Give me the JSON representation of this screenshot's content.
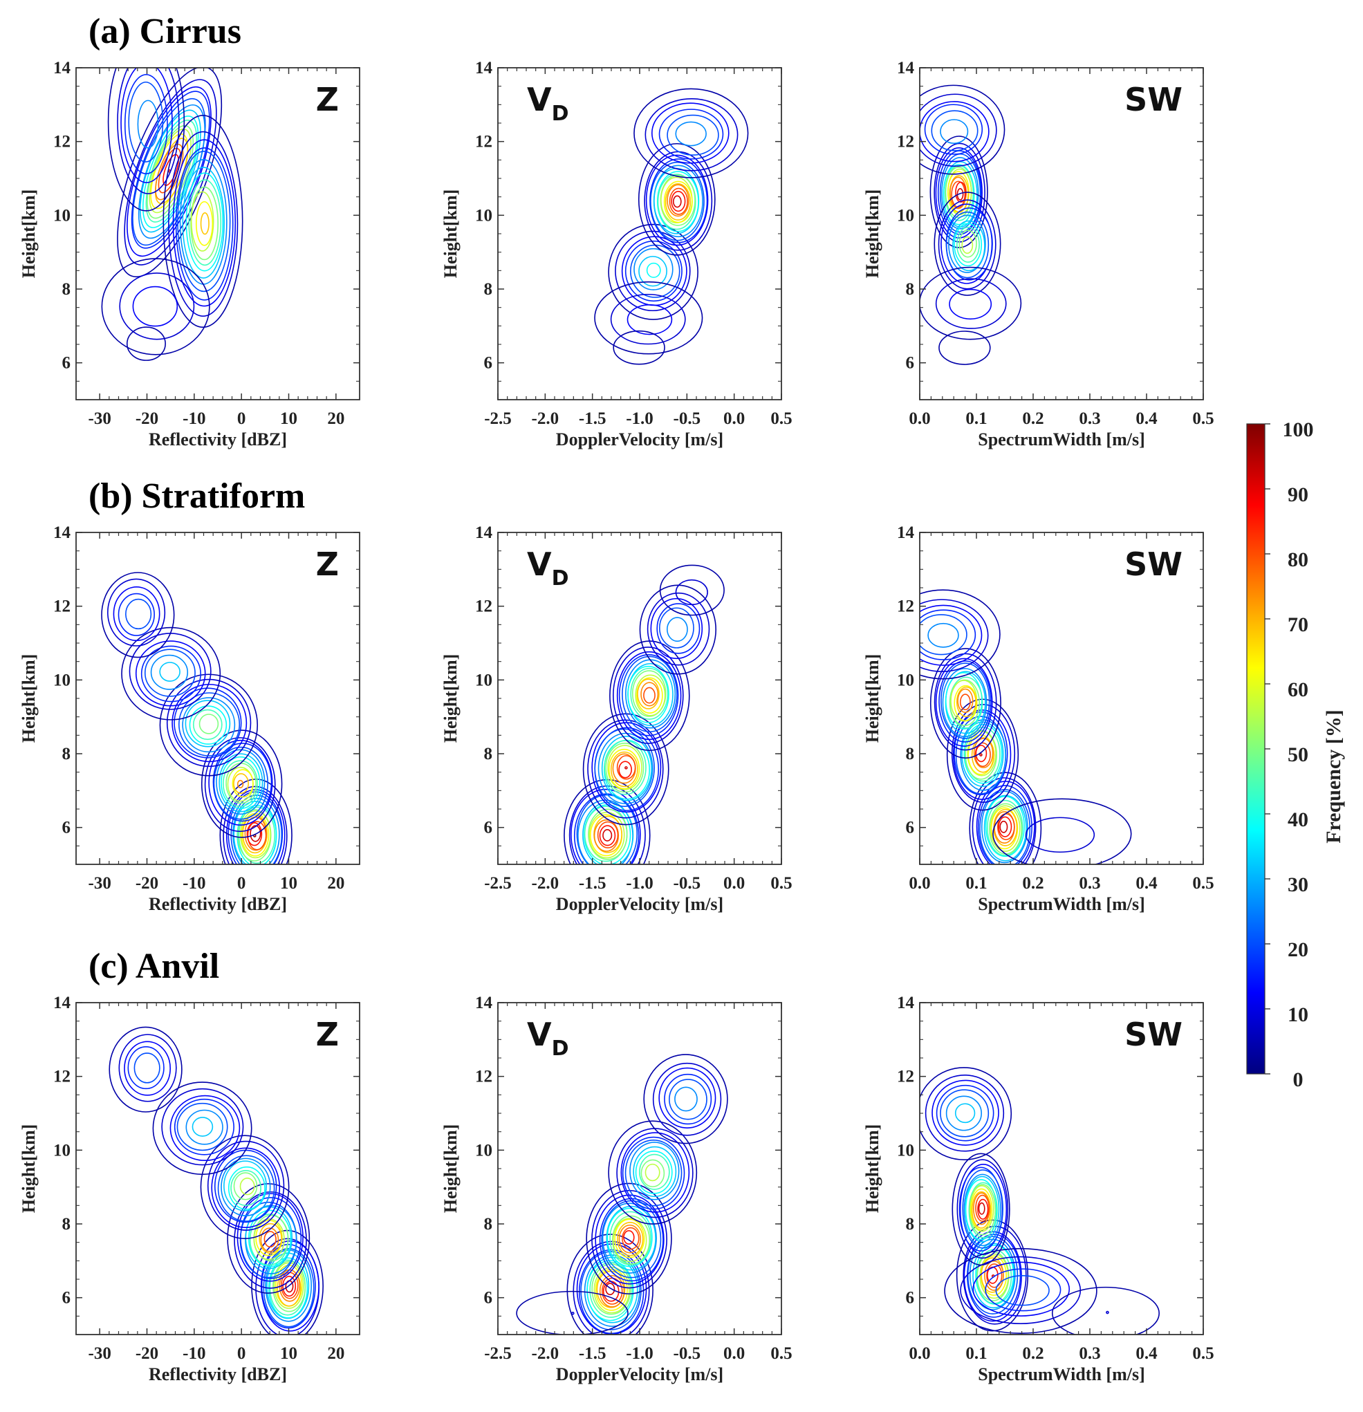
{
  "chart_data": {
    "type": "contour",
    "title": "",
    "rows": [
      {
        "title": "(a) Cirrus",
        "panels": [
          {
            "var": "Z",
            "sub": "",
            "xlabel": "Reflectivity [dBZ]",
            "ylabel": "Height[km]",
            "xlim": [
              -35,
              25
            ],
            "ylim": [
              5,
              14
            ],
            "xticks": [
              {
                "v": -30,
                "t": "-30"
              },
              {
                "v": -20,
                "t": "-20"
              },
              {
                "v": -10,
                "t": "-10"
              },
              {
                "v": 0,
                "t": "0"
              },
              {
                "v": 10,
                "t": "10"
              },
              {
                "v": 20,
                "t": "20"
              }
            ],
            "yticks": [
              {
                "v": 6,
                "t": "6"
              },
              {
                "v": 8,
                "t": "8"
              },
              {
                "v": 10,
                "t": "10"
              },
              {
                "v": 12,
                "t": "12"
              },
              {
                "v": 14,
                "t": "14"
              }
            ],
            "spine": [
              [
                -15,
                11.2,
                3.2,
                1.2,
                92
              ],
              [
                -8,
                9.8,
                3.5,
                1.2,
                70
              ],
              [
                -20,
                12.5,
                4,
                1.2,
                30
              ],
              [
                -18,
                7.5,
                7,
                0.8,
                15
              ],
              [
                -20,
                6.5,
                4.5,
                0.5,
                6
              ]
            ]
          },
          {
            "var": "V",
            "sub": "D",
            "xlabel": "DopplerVelocity [m/s]",
            "ylabel": "Height[km]",
            "xlim": [
              -2.5,
              0.5
            ],
            "ylim": [
              5,
              14
            ],
            "xticks": [
              {
                "v": -2.5,
                "t": "-2.5"
              },
              {
                "v": -2.0,
                "t": "-2.0"
              },
              {
                "v": -1.5,
                "t": "-1.5"
              },
              {
                "v": -1.0,
                "t": "-1.0"
              },
              {
                "v": -0.5,
                "t": "-0.5"
              },
              {
                "v": 0.0,
                "t": "0.0"
              },
              {
                "v": 0.5,
                "t": "0.5"
              }
            ],
            "yticks": [
              {
                "v": 6,
                "t": "6"
              },
              {
                "v": 8,
                "t": "8"
              },
              {
                "v": 10,
                "t": "10"
              },
              {
                "v": 12,
                "t": "12"
              },
              {
                "v": 14,
                "t": "14"
              }
            ],
            "spine": [
              [
                -0.85,
                8.5,
                0.22,
                0.6,
                40
              ],
              [
                -0.6,
                10.4,
                0.16,
                0.6,
                95
              ],
              [
                -0.45,
                12.2,
                0.3,
                0.6,
                30
              ],
              [
                -0.9,
                7.2,
                0.35,
                0.6,
                15
              ],
              [
                -1.0,
                6.4,
                0.3,
                0.5,
                6
              ]
            ]
          },
          {
            "var": "SW",
            "sub": "",
            "xlabel": "SpectrumWidth [m/s]",
            "ylabel": "Height[km]",
            "xlim": [
              0.0,
              0.5
            ],
            "ylim": [
              5,
              14
            ],
            "xticks": [
              {
                "v": 0.0,
                "t": "0.0"
              },
              {
                "v": 0.1,
                "t": "0.1"
              },
              {
                "v": 0.2,
                "t": "0.2"
              },
              {
                "v": 0.3,
                "t": "0.3"
              },
              {
                "v": 0.4,
                "t": "0.4"
              },
              {
                "v": 0.5,
                "t": "0.5"
              }
            ],
            "yticks": [
              {
                "v": 6,
                "t": "6"
              },
              {
                "v": 8,
                "t": "8"
              },
              {
                "v": 10,
                "t": "10"
              },
              {
                "v": 12,
                "t": "12"
              },
              {
                "v": 14,
                "t": "14"
              }
            ],
            "spine": [
              [
                0.07,
                10.6,
                0.02,
                0.6,
                95
              ],
              [
                0.085,
                9.2,
                0.025,
                0.6,
                60
              ],
              [
                0.06,
                12.3,
                0.045,
                0.6,
                30
              ],
              [
                0.09,
                7.6,
                0.055,
                0.6,
                15
              ],
              [
                0.08,
                6.4,
                0.05,
                0.5,
                6
              ]
            ]
          }
        ]
      },
      {
        "title": "(b) Stratiform",
        "panels": [
          {
            "var": "Z",
            "sub": "",
            "xlabel": "Reflectivity [dBZ]",
            "ylabel": "Height[km]",
            "xlim": [
              -35,
              25
            ],
            "ylim": [
              5,
              14
            ],
            "xticks": [
              {
                "v": -30,
                "t": "-30"
              },
              {
                "v": -20,
                "t": "-20"
              },
              {
                "v": -10,
                "t": "-10"
              },
              {
                "v": 0,
                "t": "0"
              },
              {
                "v": 10,
                "t": "10"
              },
              {
                "v": 20,
                "t": "20"
              }
            ],
            "yticks": [
              {
                "v": 6,
                "t": "6"
              },
              {
                "v": 8,
                "t": "8"
              },
              {
                "v": 10,
                "t": "10"
              },
              {
                "v": 12,
                "t": "12"
              },
              {
                "v": 14,
                "t": "14"
              }
            ],
            "spine": [
              [
                3,
                5.8,
                3,
                0.6,
                98
              ],
              [
                0,
                7.2,
                3.5,
                0.6,
                75
              ],
              [
                -7,
                8.8,
                4.5,
                0.6,
                55
              ],
              [
                -15,
                10.2,
                5,
                0.6,
                35
              ],
              [
                -22,
                11.8,
                4,
                0.6,
                25
              ]
            ]
          },
          {
            "var": "V",
            "sub": "D",
            "xlabel": "DopplerVelocity [m/s]",
            "ylabel": "Height[km]",
            "xlim": [
              -2.5,
              0.5
            ],
            "ylim": [
              5,
              14
            ],
            "xticks": [
              {
                "v": -2.5,
                "t": "-2.5"
              },
              {
                "v": -2.0,
                "t": "-2.0"
              },
              {
                "v": -1.5,
                "t": "-1.5"
              },
              {
                "v": -1.0,
                "t": "-1.0"
              },
              {
                "v": -0.5,
                "t": "-0.5"
              },
              {
                "v": 0.0,
                "t": "0.0"
              },
              {
                "v": 0.5,
                "t": "0.5"
              }
            ],
            "yticks": [
              {
                "v": 6,
                "t": "6"
              },
              {
                "v": 8,
                "t": "8"
              },
              {
                "v": 10,
                "t": "10"
              },
              {
                "v": 12,
                "t": "12"
              },
              {
                "v": 14,
                "t": "14"
              }
            ],
            "spine": [
              [
                -1.35,
                5.8,
                0.18,
                0.6,
                95
              ],
              [
                -1.15,
                7.6,
                0.18,
                0.6,
                92
              ],
              [
                -0.9,
                9.6,
                0.17,
                0.6,
                85
              ],
              [
                -0.6,
                11.4,
                0.2,
                0.6,
                30
              ],
              [
                -0.45,
                12.4,
                0.25,
                0.5,
                10
              ]
            ]
          },
          {
            "var": "SW",
            "sub": "",
            "xlabel": "SpectrumWidth [m/s]",
            "ylabel": "Height[km]",
            "xlim": [
              0.0,
              0.5
            ],
            "ylim": [
              5,
              14
            ],
            "xticks": [
              {
                "v": 0.0,
                "t": "0.0"
              },
              {
                "v": 0.1,
                "t": "0.1"
              },
              {
                "v": 0.2,
                "t": "0.2"
              },
              {
                "v": 0.3,
                "t": "0.3"
              },
              {
                "v": 0.4,
                "t": "0.4"
              },
              {
                "v": 0.5,
                "t": "0.5"
              }
            ],
            "yticks": [
              {
                "v": 6,
                "t": "6"
              },
              {
                "v": 8,
                "t": "8"
              },
              {
                "v": 10,
                "t": "10"
              },
              {
                "v": 12,
                "t": "12"
              },
              {
                "v": 14,
                "t": "14"
              }
            ],
            "spine": [
              [
                0.15,
                6.0,
                0.025,
                0.6,
                95
              ],
              [
                0.11,
                8.0,
                0.025,
                0.6,
                92
              ],
              [
                0.08,
                9.4,
                0.025,
                0.6,
                85
              ],
              [
                0.04,
                11.2,
                0.05,
                0.6,
                30
              ],
              [
                0.25,
                5.8,
                0.09,
                0.7,
                10
              ]
            ]
          }
        ]
      },
      {
        "title": "(c) Anvil",
        "panels": [
          {
            "var": "Z",
            "sub": "",
            "xlabel": "Reflectivity [dBZ]",
            "ylabel": "Height[km]",
            "xlim": [
              -35,
              25
            ],
            "ylim": [
              5,
              14
            ],
            "xticks": [
              {
                "v": -30,
                "t": "-30"
              },
              {
                "v": -20,
                "t": "-20"
              },
              {
                "v": -10,
                "t": "-10"
              },
              {
                "v": 0,
                "t": "0"
              },
              {
                "v": 10,
                "t": "10"
              },
              {
                "v": 20,
                "t": "20"
              }
            ],
            "yticks": [
              {
                "v": 6,
                "t": "6"
              },
              {
                "v": 8,
                "t": "8"
              },
              {
                "v": 10,
                "t": "10"
              },
              {
                "v": 12,
                "t": "12"
              },
              {
                "v": 14,
                "t": "14"
              }
            ],
            "spine": [
              [
                10,
                6.3,
                3,
                0.6,
                95
              ],
              [
                6,
                7.6,
                3.5,
                0.6,
                85
              ],
              [
                1,
                9.0,
                4,
                0.6,
                60
              ],
              [
                -8,
                10.6,
                5,
                0.6,
                35
              ],
              [
                -20,
                12.2,
                4,
                0.6,
                25
              ]
            ]
          },
          {
            "var": "V",
            "sub": "D",
            "xlabel": "DopplerVelocity [m/s]",
            "ylabel": "Height[km]",
            "xlim": [
              -2.5,
              0.5
            ],
            "ylim": [
              5,
              14
            ],
            "xticks": [
              {
                "v": -2.5,
                "t": "-2.5"
              },
              {
                "v": -2.0,
                "t": "-2.0"
              },
              {
                "v": -1.5,
                "t": "-1.5"
              },
              {
                "v": -1.0,
                "t": "-1.0"
              },
              {
                "v": -0.5,
                "t": "-0.5"
              },
              {
                "v": 0.0,
                "t": "0.0"
              },
              {
                "v": 0.5,
                "t": "0.5"
              }
            ],
            "yticks": [
              {
                "v": 6,
                "t": "6"
              },
              {
                "v": 8,
                "t": "8"
              },
              {
                "v": 10,
                "t": "10"
              },
              {
                "v": 12,
                "t": "12"
              },
              {
                "v": 14,
                "t": "14"
              }
            ],
            "spine": [
              [
                -1.3,
                6.2,
                0.18,
                0.6,
                95
              ],
              [
                -1.1,
                7.6,
                0.18,
                0.6,
                90
              ],
              [
                -0.85,
                9.4,
                0.2,
                0.6,
                60
              ],
              [
                -0.5,
                11.4,
                0.22,
                0.6,
                30
              ],
              [
                -1.7,
                5.6,
                0.5,
                0.5,
                8
              ]
            ]
          },
          {
            "var": "SW",
            "sub": "",
            "xlabel": "SpectrumWidth [m/s]",
            "ylabel": "Height[km]",
            "xlim": [
              0.0,
              0.5
            ],
            "ylim": [
              5,
              14
            ],
            "xticks": [
              {
                "v": 0.0,
                "t": "0.0"
              },
              {
                "v": 0.1,
                "t": "0.1"
              },
              {
                "v": 0.2,
                "t": "0.2"
              },
              {
                "v": 0.3,
                "t": "0.3"
              },
              {
                "v": 0.4,
                "t": "0.4"
              },
              {
                "v": 0.5,
                "t": "0.5"
              }
            ],
            "yticks": [
              {
                "v": 6,
                "t": "6"
              },
              {
                "v": 8,
                "t": "8"
              },
              {
                "v": 10,
                "t": "10"
              },
              {
                "v": 12,
                "t": "12"
              },
              {
                "v": 14,
                "t": "14"
              }
            ],
            "spine": [
              [
                0.13,
                6.6,
                0.025,
                0.6,
                92
              ],
              [
                0.11,
                8.4,
                0.02,
                0.6,
                95
              ],
              [
                0.08,
                11.0,
                0.04,
                0.6,
                35
              ],
              [
                0.18,
                6.2,
                0.07,
                0.6,
                25
              ],
              [
                0.33,
                5.6,
                0.08,
                0.6,
                8
              ]
            ]
          }
        ]
      }
    ],
    "colorbar": {
      "label": "Frequency [%]",
      "range": [
        0,
        100
      ],
      "ticks": [
        {
          "v": 100,
          "t": "100"
        },
        {
          "v": 90,
          "t": "90"
        },
        {
          "v": 80,
          "t": "80"
        },
        {
          "v": 70,
          "t": "70"
        },
        {
          "v": 60,
          "t": "60"
        },
        {
          "v": 50,
          "t": "50"
        },
        {
          "v": 40,
          "t": "40"
        },
        {
          "v": 30,
          "t": "30"
        },
        {
          "v": 20,
          "t": "20"
        },
        {
          "v": 10,
          "t": "10"
        },
        {
          "v": 0,
          "t": "0"
        }
      ],
      "colormap": "jet"
    }
  }
}
